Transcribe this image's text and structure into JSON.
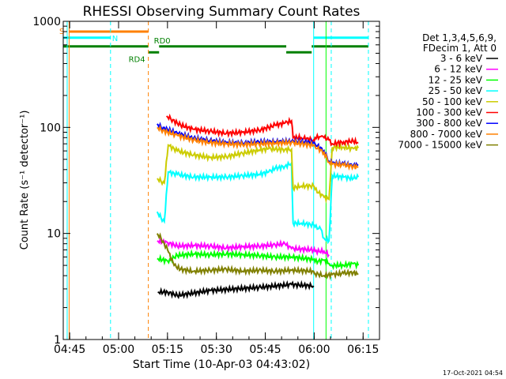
{
  "chart_data": {
    "type": "line",
    "title": "RHESSI Observing Summary Count Rates",
    "xlabel": "Start Time (10-Apr-03 04:43:02)",
    "ylabel": "Count Rate (s⁻¹ detector⁻¹)",
    "footer": "17-Oct-2021 04:54",
    "x_start": "04:43:02",
    "x_unit": "minutes",
    "xlim": [
      0,
      97
    ],
    "ylim": [
      1,
      1000
    ],
    "yscale": "log",
    "grid": false,
    "legend_position": "right",
    "x_ticks": [
      {
        "label": "04:45",
        "value": 1.97
      },
      {
        "label": "05:00",
        "value": 16.97
      },
      {
        "label": "05:15",
        "value": 31.97
      },
      {
        "label": "05:30",
        "value": 46.97
      },
      {
        "label": "05:45",
        "value": 61.97
      },
      {
        "label": "06:00",
        "value": 76.97
      },
      {
        "label": "06:15",
        "value": 91.97
      }
    ],
    "y_ticks": [
      {
        "label": "1",
        "value": 1
      },
      {
        "label": "10",
        "value": 10
      },
      {
        "label": "100",
        "value": 100
      },
      {
        "label": "1000",
        "value": 1000
      }
    ],
    "legend_header": [
      "Det 1,3,4,5,6,9,",
      "FDecim 1, Att 0"
    ],
    "series": [
      {
        "name": "3 - 6 keV",
        "color": "#000000",
        "points": [
          [
            29,
            2.8
          ],
          [
            32,
            2.8
          ],
          [
            35,
            2.6
          ],
          [
            45,
            2.9
          ],
          [
            60,
            3.1
          ],
          [
            70,
            3.3
          ],
          [
            76.8,
            3.2
          ]
        ]
      },
      {
        "name": "6 - 12 keV",
        "color": "#ff00ff",
        "points": [
          [
            28.8,
            8.5
          ],
          [
            32,
            8.2
          ],
          [
            35,
            7.6
          ],
          [
            40,
            7.7
          ],
          [
            45,
            7.6
          ],
          [
            50,
            7.3
          ],
          [
            55,
            7.5
          ],
          [
            60,
            7.6
          ],
          [
            65,
            7.8
          ],
          [
            68,
            8.0
          ],
          [
            70,
            7.2
          ],
          [
            76.8,
            7.0
          ],
          [
            77.2,
            6.8
          ],
          [
            80,
            6.8
          ],
          [
            81.5,
            6.3
          ]
        ]
      },
      {
        "name": "12 - 25 keV",
        "color": "#00ff00",
        "points": [
          [
            28.8,
            5.8
          ],
          [
            32,
            5.5
          ],
          [
            35,
            6.2
          ],
          [
            40,
            6.4
          ],
          [
            45,
            6.3
          ],
          [
            50,
            6.4
          ],
          [
            55,
            6.3
          ],
          [
            60,
            6.2
          ],
          [
            65,
            6.0
          ],
          [
            70,
            6.0
          ],
          [
            76.8,
            5.7
          ],
          [
            77.2,
            5.4
          ],
          [
            80,
            5.6
          ],
          [
            81.5,
            5.2
          ],
          [
            82.5,
            5.0
          ],
          [
            86,
            5.0
          ],
          [
            89,
            5.2
          ],
          [
            90.5,
            5.0
          ]
        ]
      },
      {
        "name": "25 - 50 keV",
        "color": "#00ffff",
        "points": [
          [
            28.8,
            16
          ],
          [
            30,
            14
          ],
          [
            31,
            13
          ],
          [
            32.2,
            38
          ],
          [
            35,
            36
          ],
          [
            40,
            34
          ],
          [
            45,
            34
          ],
          [
            50,
            34
          ],
          [
            55,
            35
          ],
          [
            60,
            36
          ],
          [
            63,
            38
          ],
          [
            65,
            41
          ],
          [
            68,
            43
          ],
          [
            70,
            46
          ],
          [
            70.5,
            12.5
          ],
          [
            73,
            12.5
          ],
          [
            76.8,
            12.0
          ],
          [
            77.2,
            11.5
          ],
          [
            79,
            11.0
          ],
          [
            80,
            9.0
          ],
          [
            81.5,
            8.5
          ],
          [
            82.5,
            35
          ],
          [
            86,
            34
          ],
          [
            89,
            33
          ],
          [
            90.5,
            34
          ]
        ]
      },
      {
        "name": "50 - 100 keV",
        "color": "#cccc00",
        "points": [
          [
            28.8,
            33
          ],
          [
            30,
            31
          ],
          [
            31,
            30
          ],
          [
            32.2,
            68
          ],
          [
            35,
            60
          ],
          [
            40,
            55
          ],
          [
            45,
            52
          ],
          [
            50,
            53
          ],
          [
            55,
            57
          ],
          [
            60,
            61
          ],
          [
            63,
            63
          ],
          [
            65,
            62
          ],
          [
            68,
            62
          ],
          [
            70,
            62
          ],
          [
            70.5,
            27
          ],
          [
            73,
            28
          ],
          [
            76.8,
            28
          ],
          [
            77.2,
            26
          ],
          [
            80,
            22
          ],
          [
            81.5,
            21
          ],
          [
            82.5,
            65
          ],
          [
            86,
            65
          ],
          [
            89,
            63
          ],
          [
            90.5,
            64
          ]
        ]
      },
      {
        "name": "100 - 300 keV",
        "color": "#ff0000",
        "points": [
          [
            31.7,
            128
          ],
          [
            33,
            120
          ],
          [
            36,
            105
          ],
          [
            40,
            96
          ],
          [
            45,
            92
          ],
          [
            50,
            88
          ],
          [
            55,
            90
          ],
          [
            60,
            94
          ],
          [
            63,
            100
          ],
          [
            65,
            105
          ],
          [
            68,
            110
          ],
          [
            70,
            115
          ],
          [
            70.5,
            80
          ],
          [
            73,
            80
          ],
          [
            76.8,
            76
          ],
          [
            77.2,
            80
          ],
          [
            79,
            82
          ],
          [
            80,
            80
          ],
          [
            81.5,
            76
          ],
          [
            82.5,
            70
          ],
          [
            86,
            73
          ],
          [
            89,
            74
          ],
          [
            90.5,
            72
          ]
        ]
      },
      {
        "name": "300 - 800 keV",
        "color": "#0000ff",
        "points": [
          [
            28.8,
            108
          ],
          [
            30,
            100
          ],
          [
            32,
            95
          ],
          [
            35,
            88
          ],
          [
            40,
            79
          ],
          [
            45,
            75
          ],
          [
            50,
            72
          ],
          [
            55,
            71
          ],
          [
            60,
            73
          ],
          [
            65,
            73
          ],
          [
            70,
            74
          ],
          [
            73,
            73
          ],
          [
            76.8,
            72
          ],
          [
            77.2,
            70
          ],
          [
            80,
            60
          ],
          [
            81.5,
            48
          ],
          [
            82.5,
            46
          ],
          [
            86,
            45
          ],
          [
            89,
            44
          ],
          [
            90.5,
            44
          ]
        ]
      },
      {
        "name": "800 - 7000 keV",
        "color": "#ff8000",
        "points": [
          [
            28.8,
            100
          ],
          [
            30,
            95
          ],
          [
            32,
            90
          ],
          [
            35,
            84
          ],
          [
            40,
            76
          ],
          [
            45,
            72
          ],
          [
            50,
            70
          ],
          [
            55,
            69
          ],
          [
            60,
            70
          ],
          [
            65,
            71
          ],
          [
            70,
            72
          ],
          [
            73,
            70
          ],
          [
            76.8,
            68
          ],
          [
            77.2,
            66
          ],
          [
            80,
            58
          ],
          [
            81.5,
            47
          ],
          [
            82.5,
            45
          ],
          [
            86,
            44
          ],
          [
            89,
            43
          ],
          [
            90.5,
            42
          ]
        ]
      },
      {
        "name": "7000 - 15000 keV",
        "color": "#808000",
        "points": [
          [
            28.8,
            10
          ],
          [
            30,
            9
          ],
          [
            31,
            8
          ],
          [
            32,
            7
          ],
          [
            34,
            5
          ],
          [
            36,
            4.6
          ],
          [
            40,
            4.4
          ],
          [
            45,
            4.5
          ],
          [
            50,
            4.6
          ],
          [
            55,
            4.4
          ],
          [
            60,
            4.5
          ],
          [
            65,
            4.4
          ],
          [
            70,
            4.5
          ],
          [
            76.8,
            4.4
          ],
          [
            77.2,
            4.2
          ],
          [
            80,
            4.0
          ],
          [
            82.5,
            4.1
          ],
          [
            86,
            4.2
          ],
          [
            89,
            4.3
          ],
          [
            90.5,
            4.1
          ]
        ]
      }
    ],
    "vertical_lines": [
      {
        "x": 1.2,
        "color": "#00ffff",
        "style": "solid"
      },
      {
        "x": 1.8,
        "color": "#ff8000",
        "style": "solid"
      },
      {
        "x": 14.5,
        "color": "#00ffff",
        "style": "dashed"
      },
      {
        "x": 26.1,
        "color": "#ff8000",
        "style": "dashed"
      },
      {
        "x": 76.8,
        "color": "#00ffff",
        "style": "solid"
      },
      {
        "x": 80.6,
        "color": "#00ff00",
        "style": "solid"
      },
      {
        "x": 82.2,
        "color": "#00ffff",
        "style": "dashed"
      },
      {
        "x": 93.6,
        "color": "#00ffff",
        "style": "dashed"
      }
    ],
    "flag_bars": [
      {
        "color": "#ff8000",
        "label": "S",
        "y": 800,
        "segments": [
          [
            1.8,
            26.1
          ]
        ]
      },
      {
        "color": "#00ffff",
        "label": "N",
        "y": 700,
        "segments": [
          [
            0,
            14.5
          ],
          [
            76.8,
            93.6
          ]
        ]
      },
      {
        "color": "#008000",
        "label": "RD0",
        "y": 580,
        "segments": [
          [
            0,
            26.1
          ],
          [
            29.4,
            68.4
          ],
          [
            76.2,
            93.6
          ]
        ]
      },
      {
        "color": "#008000",
        "label": "RD4",
        "y": 510,
        "segments": [
          [
            26.1,
            29.4
          ],
          [
            68.4,
            76.2
          ]
        ]
      }
    ]
  }
}
